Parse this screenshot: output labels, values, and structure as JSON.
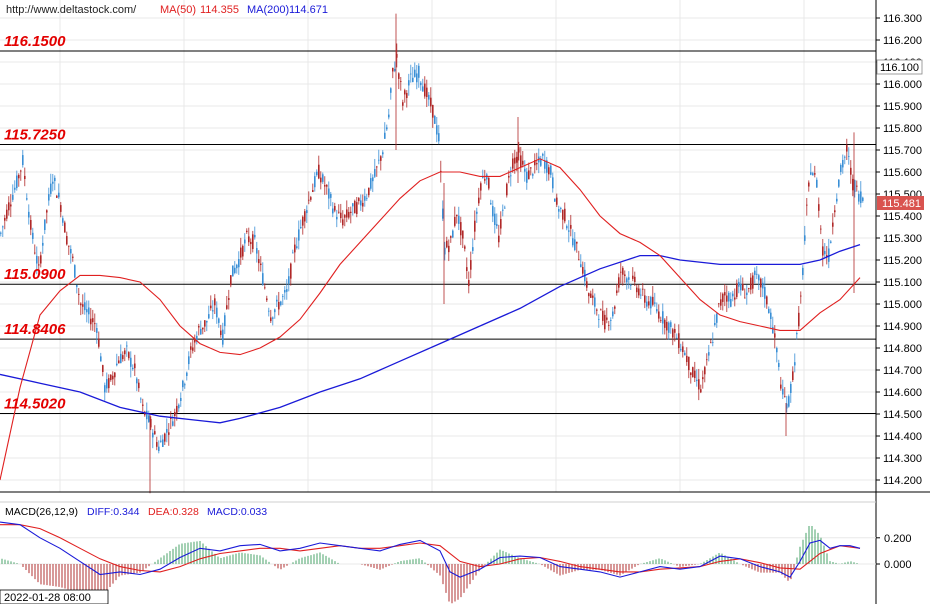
{
  "header": {
    "source": "http://www.deltastock.com/",
    "ma50_label": "MA(50)",
    "ma50_value": "114.355",
    "ma200_label": "MA(200)",
    "ma200_value": "114.671"
  },
  "colors": {
    "up_candle": "#3a8fd6",
    "down_candle": "#b02828",
    "ma50": "#e02020",
    "ma200": "#1a1ad8",
    "level_text": "#e30000",
    "grid": "#e8e8e8",
    "price_tag_current": "#d9534f"
  },
  "levels": [
    "116.1500",
    "115.7250",
    "115.0900",
    "114.8406",
    "114.5020"
  ],
  "price_tags": {
    "marker": "116.100",
    "current": "115.481"
  },
  "macd": {
    "label": "MACD(26,12,9)",
    "diff_label": "DIFF:0.344",
    "dea_label": "DEA:0.328",
    "macd_label": "MACD:0.033",
    "axis_ticks": [
      "0.200",
      "0.000"
    ]
  },
  "footer": {
    "date_label": "2022-01-28 08:00"
  },
  "chart_data": {
    "type": "line",
    "title": "",
    "xlabel": "",
    "ylabel": "",
    "ylim": [
      114.1,
      116.35
    ],
    "y_ticks": [
      "116.300",
      "116.200",
      "116.100",
      "116.000",
      "115.900",
      "115.800",
      "115.700",
      "115.600",
      "115.500",
      "115.400",
      "115.300",
      "115.200",
      "115.100",
      "115.000",
      "114.900",
      "114.800",
      "114.700",
      "114.600",
      "114.500",
      "114.400",
      "114.300",
      "114.200"
    ],
    "horizontal_levels": [
      116.15,
      115.725,
      115.09,
      114.8406,
      114.502
    ],
    "close_path": [
      [
        0,
        115.32
      ],
      [
        8,
        115.45
      ],
      [
        16,
        115.55
      ],
      [
        22,
        115.65
      ],
      [
        30,
        115.35
      ],
      [
        38,
        115.15
      ],
      [
        46,
        115.42
      ],
      [
        52,
        115.58
      ],
      [
        60,
        115.45
      ],
      [
        66,
        115.3
      ],
      [
        72,
        115.2
      ],
      [
        80,
        115.0
      ],
      [
        88,
        114.95
      ],
      [
        96,
        114.9
      ],
      [
        104,
        114.62
      ],
      [
        110,
        114.65
      ],
      [
        118,
        114.75
      ],
      [
        126,
        114.78
      ],
      [
        134,
        114.7
      ],
      [
        142,
        114.52
      ],
      [
        150,
        114.45
      ],
      [
        158,
        114.35
      ],
      [
        166,
        114.42
      ],
      [
        174,
        114.5
      ],
      [
        182,
        114.62
      ],
      [
        190,
        114.78
      ],
      [
        198,
        114.88
      ],
      [
        206,
        114.92
      ],
      [
        214,
        115.0
      ],
      [
        222,
        114.85
      ],
      [
        230,
        115.12
      ],
      [
        238,
        115.2
      ],
      [
        246,
        115.3
      ],
      [
        254,
        115.28
      ],
      [
        262,
        115.12
      ],
      [
        270,
        114.95
      ],
      [
        278,
        115.0
      ],
      [
        286,
        115.05
      ],
      [
        294,
        115.25
      ],
      [
        302,
        115.38
      ],
      [
        310,
        115.5
      ],
      [
        318,
        115.6
      ],
      [
        326,
        115.52
      ],
      [
        334,
        115.42
      ],
      [
        342,
        115.38
      ],
      [
        350,
        115.42
      ],
      [
        358,
        115.45
      ],
      [
        366,
        115.5
      ],
      [
        374,
        115.58
      ],
      [
        382,
        115.7
      ],
      [
        388,
        115.85
      ],
      [
        392,
        116.05
      ],
      [
        396,
        116.12
      ],
      [
        402,
        115.92
      ],
      [
        410,
        116.02
      ],
      [
        418,
        116.05
      ],
      [
        426,
        115.95
      ],
      [
        432,
        115.88
      ],
      [
        438,
        115.75
      ],
      [
        444,
        115.25
      ],
      [
        450,
        115.28
      ],
      [
        456,
        115.42
      ],
      [
        462,
        115.3
      ],
      [
        468,
        115.1
      ],
      [
        474,
        115.35
      ],
      [
        480,
        115.55
      ],
      [
        486,
        115.6
      ],
      [
        492,
        115.42
      ],
      [
        498,
        115.3
      ],
      [
        506,
        115.52
      ],
      [
        512,
        115.65
      ],
      [
        518,
        115.68
      ],
      [
        526,
        115.58
      ],
      [
        534,
        115.62
      ],
      [
        542,
        115.66
      ],
      [
        550,
        115.6
      ],
      [
        556,
        115.45
      ],
      [
        564,
        115.4
      ],
      [
        572,
        115.3
      ],
      [
        580,
        115.2
      ],
      [
        588,
        115.05
      ],
      [
        596,
        114.98
      ],
      [
        604,
        114.92
      ],
      [
        612,
        114.95
      ],
      [
        620,
        115.15
      ],
      [
        628,
        115.12
      ],
      [
        636,
        115.08
      ],
      [
        644,
        115.02
      ],
      [
        652,
        115.0
      ],
      [
        660,
        114.95
      ],
      [
        668,
        114.9
      ],
      [
        676,
        114.85
      ],
      [
        684,
        114.78
      ],
      [
        692,
        114.68
      ],
      [
        700,
        114.62
      ],
      [
        706,
        114.72
      ],
      [
        712,
        114.85
      ],
      [
        718,
        114.98
      ],
      [
        724,
        115.05
      ],
      [
        730,
        115.02
      ],
      [
        738,
        115.08
      ],
      [
        746,
        115.05
      ],
      [
        754,
        115.12
      ],
      [
        762,
        115.08
      ],
      [
        770,
        114.95
      ],
      [
        776,
        114.78
      ],
      [
        782,
        114.58
      ],
      [
        788,
        114.55
      ],
      [
        794,
        114.75
      ],
      [
        800,
        115.02
      ],
      [
        806,
        115.42
      ],
      [
        810,
        115.62
      ],
      [
        816,
        115.55
      ],
      [
        822,
        115.25
      ],
      [
        828,
        115.22
      ],
      [
        834,
        115.45
      ],
      [
        840,
        115.6
      ],
      [
        846,
        115.7
      ],
      [
        852,
        115.55
      ],
      [
        858,
        115.5
      ],
      [
        864,
        115.48
      ]
    ],
    "series": [
      {
        "values": [
          [
            0,
            114.2
          ],
          [
            20,
            114.62
          ],
          [
            40,
            114.95
          ],
          [
            60,
            115.06
          ],
          [
            80,
            115.13
          ],
          [
            100,
            115.13
          ],
          [
            120,
            115.12
          ],
          [
            140,
            115.1
          ],
          [
            160,
            115.02
          ],
          [
            180,
            114.9
          ],
          [
            200,
            114.82
          ],
          [
            220,
            114.78
          ],
          [
            240,
            114.77
          ],
          [
            260,
            114.8
          ],
          [
            280,
            114.85
          ],
          [
            300,
            114.93
          ],
          [
            320,
            115.05
          ],
          [
            340,
            115.18
          ],
          [
            360,
            115.28
          ],
          [
            380,
            115.38
          ],
          [
            400,
            115.48
          ],
          [
            420,
            115.56
          ],
          [
            440,
            115.6
          ],
          [
            460,
            115.6
          ],
          [
            480,
            115.58
          ],
          [
            500,
            115.58
          ],
          [
            520,
            115.62
          ],
          [
            540,
            115.66
          ],
          [
            560,
            115.62
          ],
          [
            580,
            115.52
          ],
          [
            600,
            115.4
          ],
          [
            620,
            115.32
          ],
          [
            640,
            115.28
          ],
          [
            660,
            115.22
          ],
          [
            680,
            115.12
          ],
          [
            700,
            115.02
          ],
          [
            720,
            114.95
          ],
          [
            740,
            114.92
          ],
          [
            760,
            114.9
          ],
          [
            780,
            114.88
          ],
          [
            800,
            114.88
          ],
          [
            820,
            114.96
          ],
          [
            840,
            115.02
          ],
          [
            860,
            115.12
          ]
        ]
      },
      {
        "values": [
          [
            0,
            114.68
          ],
          [
            40,
            114.64
          ],
          [
            80,
            114.6
          ],
          [
            120,
            114.53
          ],
          [
            160,
            114.49
          ],
          [
            200,
            114.47
          ],
          [
            220,
            114.46
          ],
          [
            240,
            114.48
          ],
          [
            280,
            114.53
          ],
          [
            320,
            114.6
          ],
          [
            360,
            114.66
          ],
          [
            400,
            114.74
          ],
          [
            440,
            114.82
          ],
          [
            480,
            114.9
          ],
          [
            520,
            114.98
          ],
          [
            560,
            115.08
          ],
          [
            600,
            115.16
          ],
          [
            640,
            115.22
          ],
          [
            660,
            115.22
          ],
          [
            680,
            115.2
          ],
          [
            720,
            115.18
          ],
          [
            760,
            115.18
          ],
          [
            800,
            115.18
          ],
          [
            820,
            115.2
          ],
          [
            840,
            115.24
          ],
          [
            860,
            115.27
          ]
        ]
      }
    ],
    "macd_ylim": [
      -0.2,
      0.34
    ],
    "macd_series": {
      "diff": [
        [
          0,
          0.32
        ],
        [
          20,
          0.3
        ],
        [
          40,
          0.2
        ],
        [
          60,
          0.12
        ],
        [
          80,
          0.02
        ],
        [
          100,
          -0.08
        ],
        [
          120,
          -0.06
        ],
        [
          140,
          -0.08
        ],
        [
          160,
          -0.04
        ],
        [
          180,
          0.05
        ],
        [
          200,
          0.12
        ],
        [
          220,
          0.1
        ],
        [
          240,
          0.14
        ],
        [
          260,
          0.15
        ],
        [
          280,
          0.1
        ],
        [
          300,
          0.12
        ],
        [
          320,
          0.16
        ],
        [
          340,
          0.14
        ],
        [
          360,
          0.12
        ],
        [
          380,
          0.1
        ],
        [
          400,
          0.15
        ],
        [
          420,
          0.18
        ],
        [
          440,
          0.1
        ],
        [
          450,
          -0.06
        ],
        [
          460,
          -0.1
        ],
        [
          480,
          -0.04
        ],
        [
          500,
          0.05
        ],
        [
          520,
          0.06
        ],
        [
          540,
          0.05
        ],
        [
          560,
          -0.02
        ],
        [
          580,
          -0.04
        ],
        [
          600,
          -0.06
        ],
        [
          620,
          -0.1
        ],
        [
          640,
          -0.06
        ],
        [
          660,
          -0.02
        ],
        [
          680,
          -0.04
        ],
        [
          700,
          -0.02
        ],
        [
          720,
          0.06
        ],
        [
          740,
          0.04
        ],
        [
          760,
          -0.02
        ],
        [
          780,
          -0.06
        ],
        [
          790,
          -0.1
        ],
        [
          800,
          0.02
        ],
        [
          810,
          0.16
        ],
        [
          820,
          0.18
        ],
        [
          830,
          0.12
        ],
        [
          840,
          0.14
        ],
        [
          850,
          0.14
        ],
        [
          860,
          0.12
        ]
      ],
      "dea": [
        [
          0,
          0.3
        ],
        [
          20,
          0.3
        ],
        [
          40,
          0.27
        ],
        [
          60,
          0.2
        ],
        [
          80,
          0.12
        ],
        [
          100,
          0.04
        ],
        [
          120,
          -0.02
        ],
        [
          140,
          -0.05
        ],
        [
          160,
          -0.06
        ],
        [
          180,
          -0.02
        ],
        [
          200,
          0.04
        ],
        [
          220,
          0.08
        ],
        [
          240,
          0.1
        ],
        [
          260,
          0.12
        ],
        [
          280,
          0.12
        ],
        [
          300,
          0.1
        ],
        [
          320,
          0.12
        ],
        [
          340,
          0.14
        ],
        [
          360,
          0.12
        ],
        [
          380,
          0.12
        ],
        [
          400,
          0.14
        ],
        [
          420,
          0.16
        ],
        [
          440,
          0.14
        ],
        [
          460,
          0.02
        ],
        [
          480,
          -0.02
        ],
        [
          500,
          0.0
        ],
        [
          520,
          0.04
        ],
        [
          540,
          0.05
        ],
        [
          560,
          0.02
        ],
        [
          580,
          -0.02
        ],
        [
          600,
          -0.04
        ],
        [
          620,
          -0.06
        ],
        [
          640,
          -0.06
        ],
        [
          660,
          -0.04
        ],
        [
          680,
          -0.03
        ],
        [
          700,
          -0.02
        ],
        [
          720,
          0.02
        ],
        [
          740,
          0.04
        ],
        [
          760,
          0.01
        ],
        [
          780,
          -0.03
        ],
        [
          800,
          -0.04
        ],
        [
          820,
          0.08
        ],
        [
          840,
          0.14
        ],
        [
          860,
          0.12
        ]
      ]
    }
  }
}
